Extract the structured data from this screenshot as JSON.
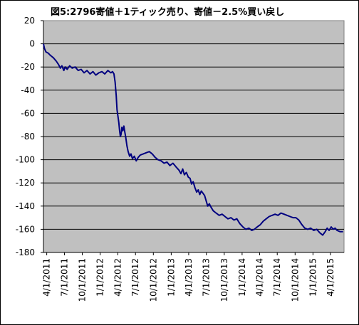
{
  "chart_data": {
    "type": "line",
    "title": "図5:2796寄値＋1ティック売り、寄値－2.5%買い戻し",
    "xlabel": "",
    "ylabel": "",
    "ylim": [
      -180,
      20
    ],
    "yticks": [
      20,
      0,
      -20,
      -40,
      -60,
      -80,
      -100,
      -120,
      -140,
      -160,
      -180
    ],
    "xlim": [
      "2011-03-15",
      "2015-06-10"
    ],
    "xticks": [
      "4/1/2011",
      "7/1/2011",
      "10/1/2011",
      "1/1/2012",
      "4/1/2012",
      "7/1/2012",
      "10/1/2012",
      "1/1/2013",
      "4/1/2013",
      "7/1/2013",
      "10/1/2013",
      "1/1/2014",
      "4/1/2014",
      "7/1/2014",
      "10/1/2014",
      "1/1/2015",
      "4/1/2015"
    ],
    "grid": "horizontal",
    "plot_background": "#c0c0c0",
    "line_color": "#000080",
    "series": [
      {
        "values": [
          [
            "2011-03-15",
            0
          ],
          [
            "2011-03-20",
            -4
          ],
          [
            "2011-03-28",
            -7
          ],
          [
            "2011-04-08",
            -8
          ],
          [
            "2011-04-20",
            -10
          ],
          [
            "2011-05-05",
            -12
          ],
          [
            "2011-05-20",
            -15
          ],
          [
            "2011-06-01",
            -18
          ],
          [
            "2011-06-10",
            -21
          ],
          [
            "2011-06-18",
            -19
          ],
          [
            "2011-06-28",
            -23
          ],
          [
            "2011-07-05",
            -20
          ],
          [
            "2011-07-15",
            -22
          ],
          [
            "2011-07-28",
            -19
          ],
          [
            "2011-08-10",
            -21
          ],
          [
            "2011-08-25",
            -20
          ],
          [
            "2011-09-10",
            -23
          ],
          [
            "2011-09-25",
            -22
          ],
          [
            "2011-10-10",
            -25
          ],
          [
            "2011-10-25",
            -23
          ],
          [
            "2011-11-10",
            -26
          ],
          [
            "2011-11-25",
            -24
          ],
          [
            "2011-12-10",
            -27
          ],
          [
            "2011-12-25",
            -25
          ],
          [
            "2012-01-10",
            -24
          ],
          [
            "2012-01-25",
            -26
          ],
          [
            "2012-02-10",
            -23
          ],
          [
            "2012-02-25",
            -25
          ],
          [
            "2012-03-05",
            -24
          ],
          [
            "2012-03-12",
            -26
          ],
          [
            "2012-03-18",
            -33
          ],
          [
            "2012-03-24",
            -45
          ],
          [
            "2012-03-28",
            -57
          ],
          [
            "2012-04-02",
            -63
          ],
          [
            "2012-04-06",
            -68
          ],
          [
            "2012-04-10",
            -75
          ],
          [
            "2012-04-14",
            -80
          ],
          [
            "2012-04-18",
            -78
          ],
          [
            "2012-04-22",
            -72
          ],
          [
            "2012-04-27",
            -75
          ],
          [
            "2012-05-02",
            -71
          ],
          [
            "2012-05-07",
            -76
          ],
          [
            "2012-05-12",
            -81
          ],
          [
            "2012-05-18",
            -88
          ],
          [
            "2012-05-24",
            -93
          ],
          [
            "2012-06-01",
            -97
          ],
          [
            "2012-06-08",
            -95
          ],
          [
            "2012-06-15",
            -99
          ],
          [
            "2012-06-25",
            -97
          ],
          [
            "2012-07-05",
            -101
          ],
          [
            "2012-07-15",
            -98
          ],
          [
            "2012-07-25",
            -96
          ],
          [
            "2012-08-10",
            -95
          ],
          [
            "2012-08-25",
            -94
          ],
          [
            "2012-09-10",
            -93
          ],
          [
            "2012-09-25",
            -95
          ],
          [
            "2012-10-10",
            -98
          ],
          [
            "2012-10-25",
            -100
          ],
          [
            "2012-11-10",
            -101
          ],
          [
            "2012-11-25",
            -103
          ],
          [
            "2012-12-10",
            -102
          ],
          [
            "2012-12-25",
            -105
          ],
          [
            "2013-01-10",
            -103
          ],
          [
            "2013-01-25",
            -106
          ],
          [
            "2013-02-10",
            -109
          ],
          [
            "2013-02-20",
            -112
          ],
          [
            "2013-03-01",
            -108
          ],
          [
            "2013-03-10",
            -113
          ],
          [
            "2013-03-20",
            -111
          ],
          [
            "2013-03-30",
            -115
          ],
          [
            "2013-04-08",
            -116
          ],
          [
            "2013-04-16",
            -121
          ],
          [
            "2013-04-24",
            -119
          ],
          [
            "2013-05-03",
            -124
          ],
          [
            "2013-05-12",
            -128
          ],
          [
            "2013-05-20",
            -126
          ],
          [
            "2013-05-28",
            -130
          ],
          [
            "2013-06-05",
            -127
          ],
          [
            "2013-06-14",
            -129
          ],
          [
            "2013-06-22",
            -131
          ],
          [
            "2013-07-01",
            -136
          ],
          [
            "2013-07-08",
            -140
          ],
          [
            "2013-07-16",
            -138
          ],
          [
            "2013-07-25",
            -141
          ],
          [
            "2013-08-05",
            -144
          ],
          [
            "2013-08-20",
            -146
          ],
          [
            "2013-09-05",
            -148
          ],
          [
            "2013-09-20",
            -147
          ],
          [
            "2013-10-05",
            -149
          ],
          [
            "2013-10-20",
            -151
          ],
          [
            "2013-11-05",
            -150
          ],
          [
            "2013-11-20",
            -152
          ],
          [
            "2013-12-05",
            -151
          ],
          [
            "2013-12-20",
            -155
          ],
          [
            "2014-01-05",
            -158
          ],
          [
            "2014-01-20",
            -160
          ],
          [
            "2014-02-05",
            -159
          ],
          [
            "2014-02-20",
            -161
          ],
          [
            "2014-03-05",
            -160
          ],
          [
            "2014-03-20",
            -158
          ],
          [
            "2014-04-05",
            -156
          ],
          [
            "2014-04-20",
            -153
          ],
          [
            "2014-05-05",
            -151
          ],
          [
            "2014-05-20",
            -149
          ],
          [
            "2014-06-05",
            -148
          ],
          [
            "2014-06-20",
            -147
          ],
          [
            "2014-07-05",
            -148
          ],
          [
            "2014-07-20",
            -146
          ],
          [
            "2014-08-05",
            -147
          ],
          [
            "2014-08-20",
            -148
          ],
          [
            "2014-09-05",
            -149
          ],
          [
            "2014-09-20",
            -150
          ],
          [
            "2014-10-05",
            -150
          ],
          [
            "2014-10-20",
            -152
          ],
          [
            "2014-11-05",
            -156
          ],
          [
            "2014-11-20",
            -159
          ],
          [
            "2014-12-05",
            -160
          ],
          [
            "2014-12-20",
            -159
          ],
          [
            "2015-01-05",
            -161
          ],
          [
            "2015-01-20",
            -160
          ],
          [
            "2015-02-05",
            -163
          ],
          [
            "2015-02-20",
            -165
          ],
          [
            "2015-03-05",
            -162
          ],
          [
            "2015-03-15",
            -159
          ],
          [
            "2015-03-25",
            -161
          ],
          [
            "2015-04-05",
            -158
          ],
          [
            "2015-04-15",
            -160
          ],
          [
            "2015-04-25",
            -159
          ],
          [
            "2015-05-05",
            -161
          ],
          [
            "2015-05-20",
            -162
          ],
          [
            "2015-06-05",
            -162
          ]
        ]
      }
    ]
  }
}
